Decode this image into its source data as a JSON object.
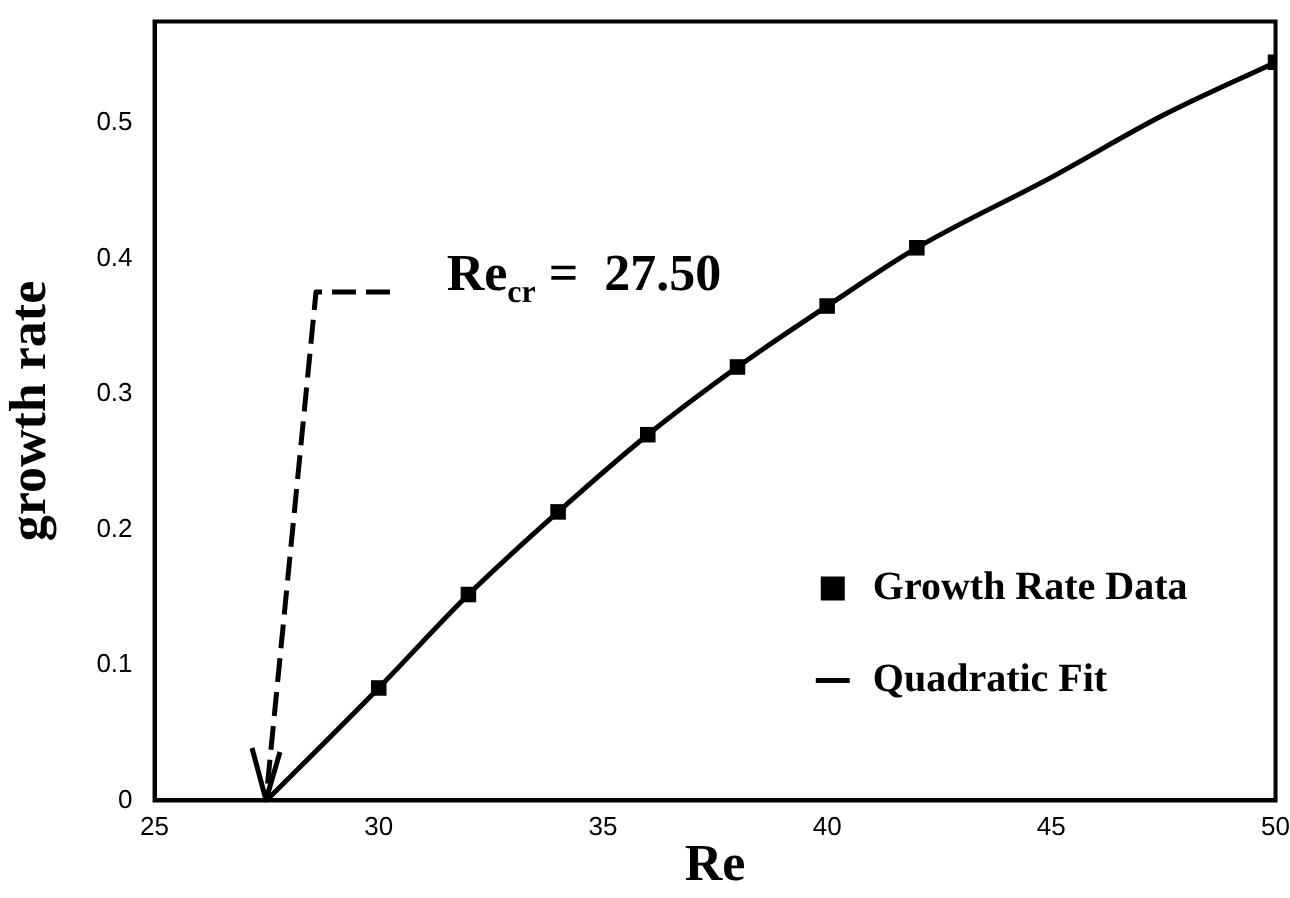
{
  "chart_data": {
    "type": "scatter",
    "xlabel": "Re",
    "ylabel": "growth rate",
    "xlim": [
      25,
      50
    ],
    "xticks": [
      25,
      30,
      35,
      40,
      45,
      50
    ],
    "ylim": [
      0,
      0.575
    ],
    "yticks": [
      0,
      0.1,
      0.2,
      0.3,
      0.4,
      0.5
    ],
    "grid": false,
    "legend": "bottom right",
    "annotations": [
      {
        "text": "Re$_{cr}$ =  27.50",
        "x": 27.5,
        "y": 0
      }
    ],
    "series": [
      {
        "name": "Growth Rate Data",
        "type": "scatter",
        "marker": "square",
        "color": "#000000",
        "x": [
          30,
          32,
          34,
          36,
          38,
          40,
          42,
          50
        ],
        "values": [
          0.083,
          0.152,
          0.213,
          0.27,
          0.32,
          0.365,
          0.408,
          0.545
        ]
      },
      {
        "name": "Quadratic Fit",
        "type": "line",
        "marker": "none",
        "line_style": "solid",
        "color": "#000000",
        "x": [
          27.5,
          30,
          32,
          34,
          36,
          38,
          40,
          42,
          45,
          47.5,
          50
        ],
        "values": [
          0,
          0.083,
          0.152,
          0.213,
          0.27,
          0.32,
          0.365,
          0.408,
          0.46,
          0.506,
          0.545
        ]
      }
    ]
  }
}
